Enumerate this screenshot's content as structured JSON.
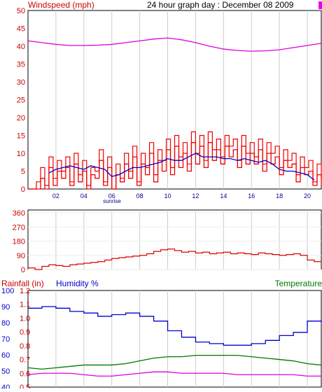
{
  "header": {
    "windspeed_label": "Windspeed (mph)",
    "date_title": "24 hour graph day : December 08 2009"
  },
  "colors": {
    "wind": "#ee0000",
    "avg_wind": "#0000cc",
    "barometer": "#dd00dd",
    "direction": "#dd0000",
    "humidity": "#0000cc",
    "temperature": "#007700",
    "rainfall": "#dd00dd",
    "grid": "#cccccc",
    "frame": "#000000",
    "axis_red": "#cc0000",
    "axis_blue": "#0000cc",
    "axis_green": "#007700"
  },
  "chart_data": [
    {
      "type": "line",
      "panel": "windspeed",
      "ylabel": "Windspeed (mph)",
      "ylim": [
        0,
        50
      ],
      "yticks": [
        0,
        5,
        10,
        15,
        20,
        25,
        30,
        35,
        40,
        45,
        50
      ],
      "xlim": [
        0,
        21
      ],
      "xticks": [
        2,
        4,
        6,
        8,
        10,
        12,
        14,
        16,
        18,
        20
      ],
      "xtick_labels": [
        "02",
        "04",
        "06",
        "08",
        "10",
        "12",
        "14",
        "16",
        "18",
        "20"
      ],
      "annotation": "sunrise",
      "grid": true,
      "series": [
        {
          "role": "gust",
          "color": "#ee0000",
          "x": [
            0.0,
            0.3,
            0.6,
            0.9,
            1.2,
            1.5,
            1.8,
            2.1,
            2.4,
            2.7,
            3.0,
            3.3,
            3.6,
            3.9,
            4.2,
            4.5,
            4.8,
            5.1,
            5.4,
            5.7,
            6.0,
            6.3,
            6.6,
            6.9,
            7.2,
            7.5,
            7.8,
            8.1,
            8.4,
            8.7,
            9.0,
            9.3,
            9.6,
            9.9,
            10.2,
            10.5,
            10.8,
            11.1,
            11.4,
            11.7,
            12.0,
            12.3,
            12.6,
            12.9,
            13.2,
            13.5,
            13.8,
            14.1,
            14.4,
            14.7,
            15.0,
            15.3,
            15.6,
            15.9,
            16.2,
            16.5,
            16.8,
            17.1,
            17.4,
            17.7,
            18.0,
            18.3,
            18.6,
            18.9,
            19.2,
            19.5,
            19.8,
            20.1,
            20.4,
            20.7,
            21.0
          ],
          "y": [
            0,
            0,
            2,
            6,
            1,
            9,
            3,
            8,
            5,
            9,
            2,
            10,
            4,
            8,
            1,
            6,
            5,
            11,
            2,
            9,
            0,
            7,
            3,
            10,
            5,
            12,
            2,
            10,
            6,
            13,
            4,
            11,
            8,
            14,
            6,
            15,
            9,
            13,
            7,
            16,
            10,
            15,
            8,
            16,
            11,
            14,
            9,
            15,
            12,
            14,
            8,
            15,
            10,
            13,
            9,
            14,
            7,
            13,
            10,
            12,
            6,
            11,
            8,
            10,
            4,
            9,
            6,
            8,
            2,
            7,
            3
          ]
        },
        {
          "role": "wind",
          "color": "#ee0000",
          "x": [
            0.0,
            0.3,
            0.6,
            0.9,
            1.2,
            1.5,
            1.8,
            2.1,
            2.4,
            2.7,
            3.0,
            3.3,
            3.6,
            3.9,
            4.2,
            4.5,
            4.8,
            5.1,
            5.4,
            5.7,
            6.0,
            6.3,
            6.6,
            6.9,
            7.2,
            7.5,
            7.8,
            8.1,
            8.4,
            8.7,
            9.0,
            9.3,
            9.6,
            9.9,
            10.2,
            10.5,
            10.8,
            11.1,
            11.4,
            11.7,
            12.0,
            12.3,
            12.6,
            12.9,
            13.2,
            13.5,
            13.8,
            14.1,
            14.4,
            14.7,
            15.0,
            15.3,
            15.6,
            15.9,
            16.2,
            16.5,
            16.8,
            17.1,
            17.4,
            17.7,
            18.0,
            18.3,
            18.6,
            18.9,
            19.2,
            19.5,
            19.8,
            20.1,
            20.4,
            20.7,
            21.0
          ],
          "y": [
            0,
            0,
            0,
            3,
            0,
            6,
            1,
            5,
            3,
            6,
            1,
            7,
            2,
            5,
            0,
            4,
            3,
            8,
            1,
            6,
            0,
            4,
            2,
            7,
            3,
            9,
            1,
            7,
            4,
            10,
            2,
            8,
            5,
            11,
            4,
            12,
            6,
            10,
            5,
            13,
            7,
            12,
            6,
            13,
            8,
            11,
            7,
            12,
            9,
            11,
            6,
            12,
            7,
            10,
            7,
            11,
            5,
            10,
            7,
            9,
            4,
            8,
            6,
            7,
            2,
            6,
            4,
            5,
            1,
            4,
            1
          ]
        },
        {
          "role": "average wind",
          "color": "#0000cc",
          "x": [
            1.5,
            2.0,
            2.5,
            3.0,
            3.5,
            4.0,
            4.5,
            5.0,
            5.5,
            6.0,
            6.5,
            7.0,
            7.5,
            8.0,
            8.5,
            9.0,
            9.5,
            10.0,
            10.5,
            11.0,
            11.5,
            12.0,
            12.5,
            13.0,
            13.5,
            14.0,
            14.5,
            15.0,
            15.5,
            16.0,
            16.5,
            17.0,
            17.5,
            18.0,
            18.5,
            19.0,
            19.5,
            20.0,
            20.5
          ],
          "y": [
            4.5,
            5.5,
            6.0,
            6.5,
            6.0,
            5.5,
            6.5,
            6.0,
            5.5,
            3.5,
            4.0,
            5.0,
            6.0,
            6.0,
            6.5,
            7.0,
            7.5,
            8.5,
            8.0,
            8.0,
            9.0,
            10.0,
            9.0,
            9.0,
            9.0,
            8.5,
            8.5,
            8.0,
            8.5,
            8.0,
            7.5,
            8.0,
            7.0,
            5.5,
            5.0,
            5.0,
            4.5,
            4.0,
            2.5
          ]
        },
        {
          "role": "barometer",
          "color": "#dd00dd",
          "x": [
            0,
            1,
            2,
            3,
            4,
            5,
            6,
            7,
            8,
            9,
            10,
            11,
            12,
            13,
            14,
            15,
            16,
            17,
            18,
            19,
            20,
            21
          ],
          "y": [
            41.5,
            41.0,
            40.5,
            40.2,
            40.2,
            40.3,
            40.5,
            41.0,
            41.5,
            42.0,
            42.3,
            41.8,
            41.0,
            40.0,
            39.2,
            38.8,
            38.6,
            38.7,
            39.0,
            39.6,
            40.2,
            40.8
          ]
        }
      ]
    },
    {
      "type": "line",
      "panel": "wind direction",
      "ylim": [
        0,
        360
      ],
      "yticks": [
        0,
        90,
        180,
        270,
        360
      ],
      "xlim": [
        0,
        21
      ],
      "grid": true,
      "series": [
        {
          "role": "direction",
          "color": "#dd0000",
          "x": [
            0.0,
            0.5,
            1.0,
            1.5,
            2.0,
            2.5,
            3.0,
            3.5,
            4.0,
            4.5,
            5.0,
            5.5,
            6.0,
            6.5,
            7.0,
            7.5,
            8.0,
            8.5,
            9.0,
            9.5,
            10.0,
            10.5,
            11.0,
            11.5,
            12.0,
            12.5,
            13.0,
            13.5,
            14.0,
            14.5,
            15.0,
            15.5,
            16.0,
            16.5,
            17.0,
            17.5,
            18.0,
            18.5,
            19.0,
            19.5,
            20.0,
            20.5,
            21.0
          ],
          "y": [
            10,
            0,
            20,
            30,
            25,
            20,
            30,
            35,
            40,
            45,
            50,
            60,
            70,
            75,
            80,
            85,
            90,
            100,
            115,
            125,
            130,
            120,
            110,
            115,
            105,
            110,
            100,
            105,
            110,
            100,
            105,
            100,
            95,
            105,
            100,
            95,
            90,
            95,
            100,
            90,
            60,
            50,
            45
          ]
        }
      ]
    },
    {
      "type": "line",
      "panel": "rainfall / humidity / temperature",
      "labels": [
        "Rainfall (in)",
        "Humidity %",
        "Temperature"
      ],
      "xlim": [
        0,
        21
      ],
      "grid": true,
      "axes": [
        {
          "side": "left-outer",
          "color": "#0000cc",
          "ticks": [
            40,
            50,
            60,
            70,
            80,
            90,
            100
          ]
        },
        {
          "side": "left-inner",
          "color": "#cc0000",
          "ticks": [
            0.5,
            0.6,
            0.7,
            0.8,
            0.9,
            1.0,
            1.1,
            1.2
          ]
        }
      ],
      "series": [
        {
          "role": "humidity",
          "color": "#0000cc",
          "x": [
            0,
            1,
            2,
            3,
            4,
            5,
            6,
            7,
            8,
            9,
            10,
            11,
            12,
            13,
            14,
            15,
            16,
            17,
            18,
            19,
            20,
            21
          ],
          "y": [
            89,
            90,
            89,
            87,
            86,
            84,
            85,
            86,
            84,
            81,
            75,
            71,
            68,
            67,
            66,
            66,
            67,
            69,
            72,
            74,
            81,
            80
          ]
        },
        {
          "role": "temperature",
          "color": "#007700",
          "x": [
            0,
            1,
            2,
            3,
            4,
            5,
            6,
            7,
            8,
            9,
            10,
            11,
            12,
            13,
            14,
            15,
            16,
            17,
            18,
            19,
            20,
            21
          ],
          "y": [
            0.64,
            0.63,
            0.64,
            0.65,
            0.66,
            0.66,
            0.66,
            0.67,
            0.69,
            0.71,
            0.72,
            0.72,
            0.73,
            0.73,
            0.73,
            0.73,
            0.72,
            0.71,
            0.7,
            0.69,
            0.67,
            0.66
          ]
        },
        {
          "role": "rainfall",
          "color": "#dd00dd",
          "x": [
            0,
            1,
            2,
            3,
            4,
            5,
            6,
            7,
            8,
            9,
            10,
            11,
            12,
            13,
            14,
            15,
            16,
            17,
            18,
            19,
            20,
            21
          ],
          "y": [
            0.59,
            0.6,
            0.6,
            0.6,
            0.59,
            0.58,
            0.58,
            0.59,
            0.6,
            0.61,
            0.61,
            0.6,
            0.6,
            0.6,
            0.6,
            0.59,
            0.59,
            0.59,
            0.59,
            0.59,
            0.58,
            0.58
          ]
        }
      ]
    }
  ]
}
